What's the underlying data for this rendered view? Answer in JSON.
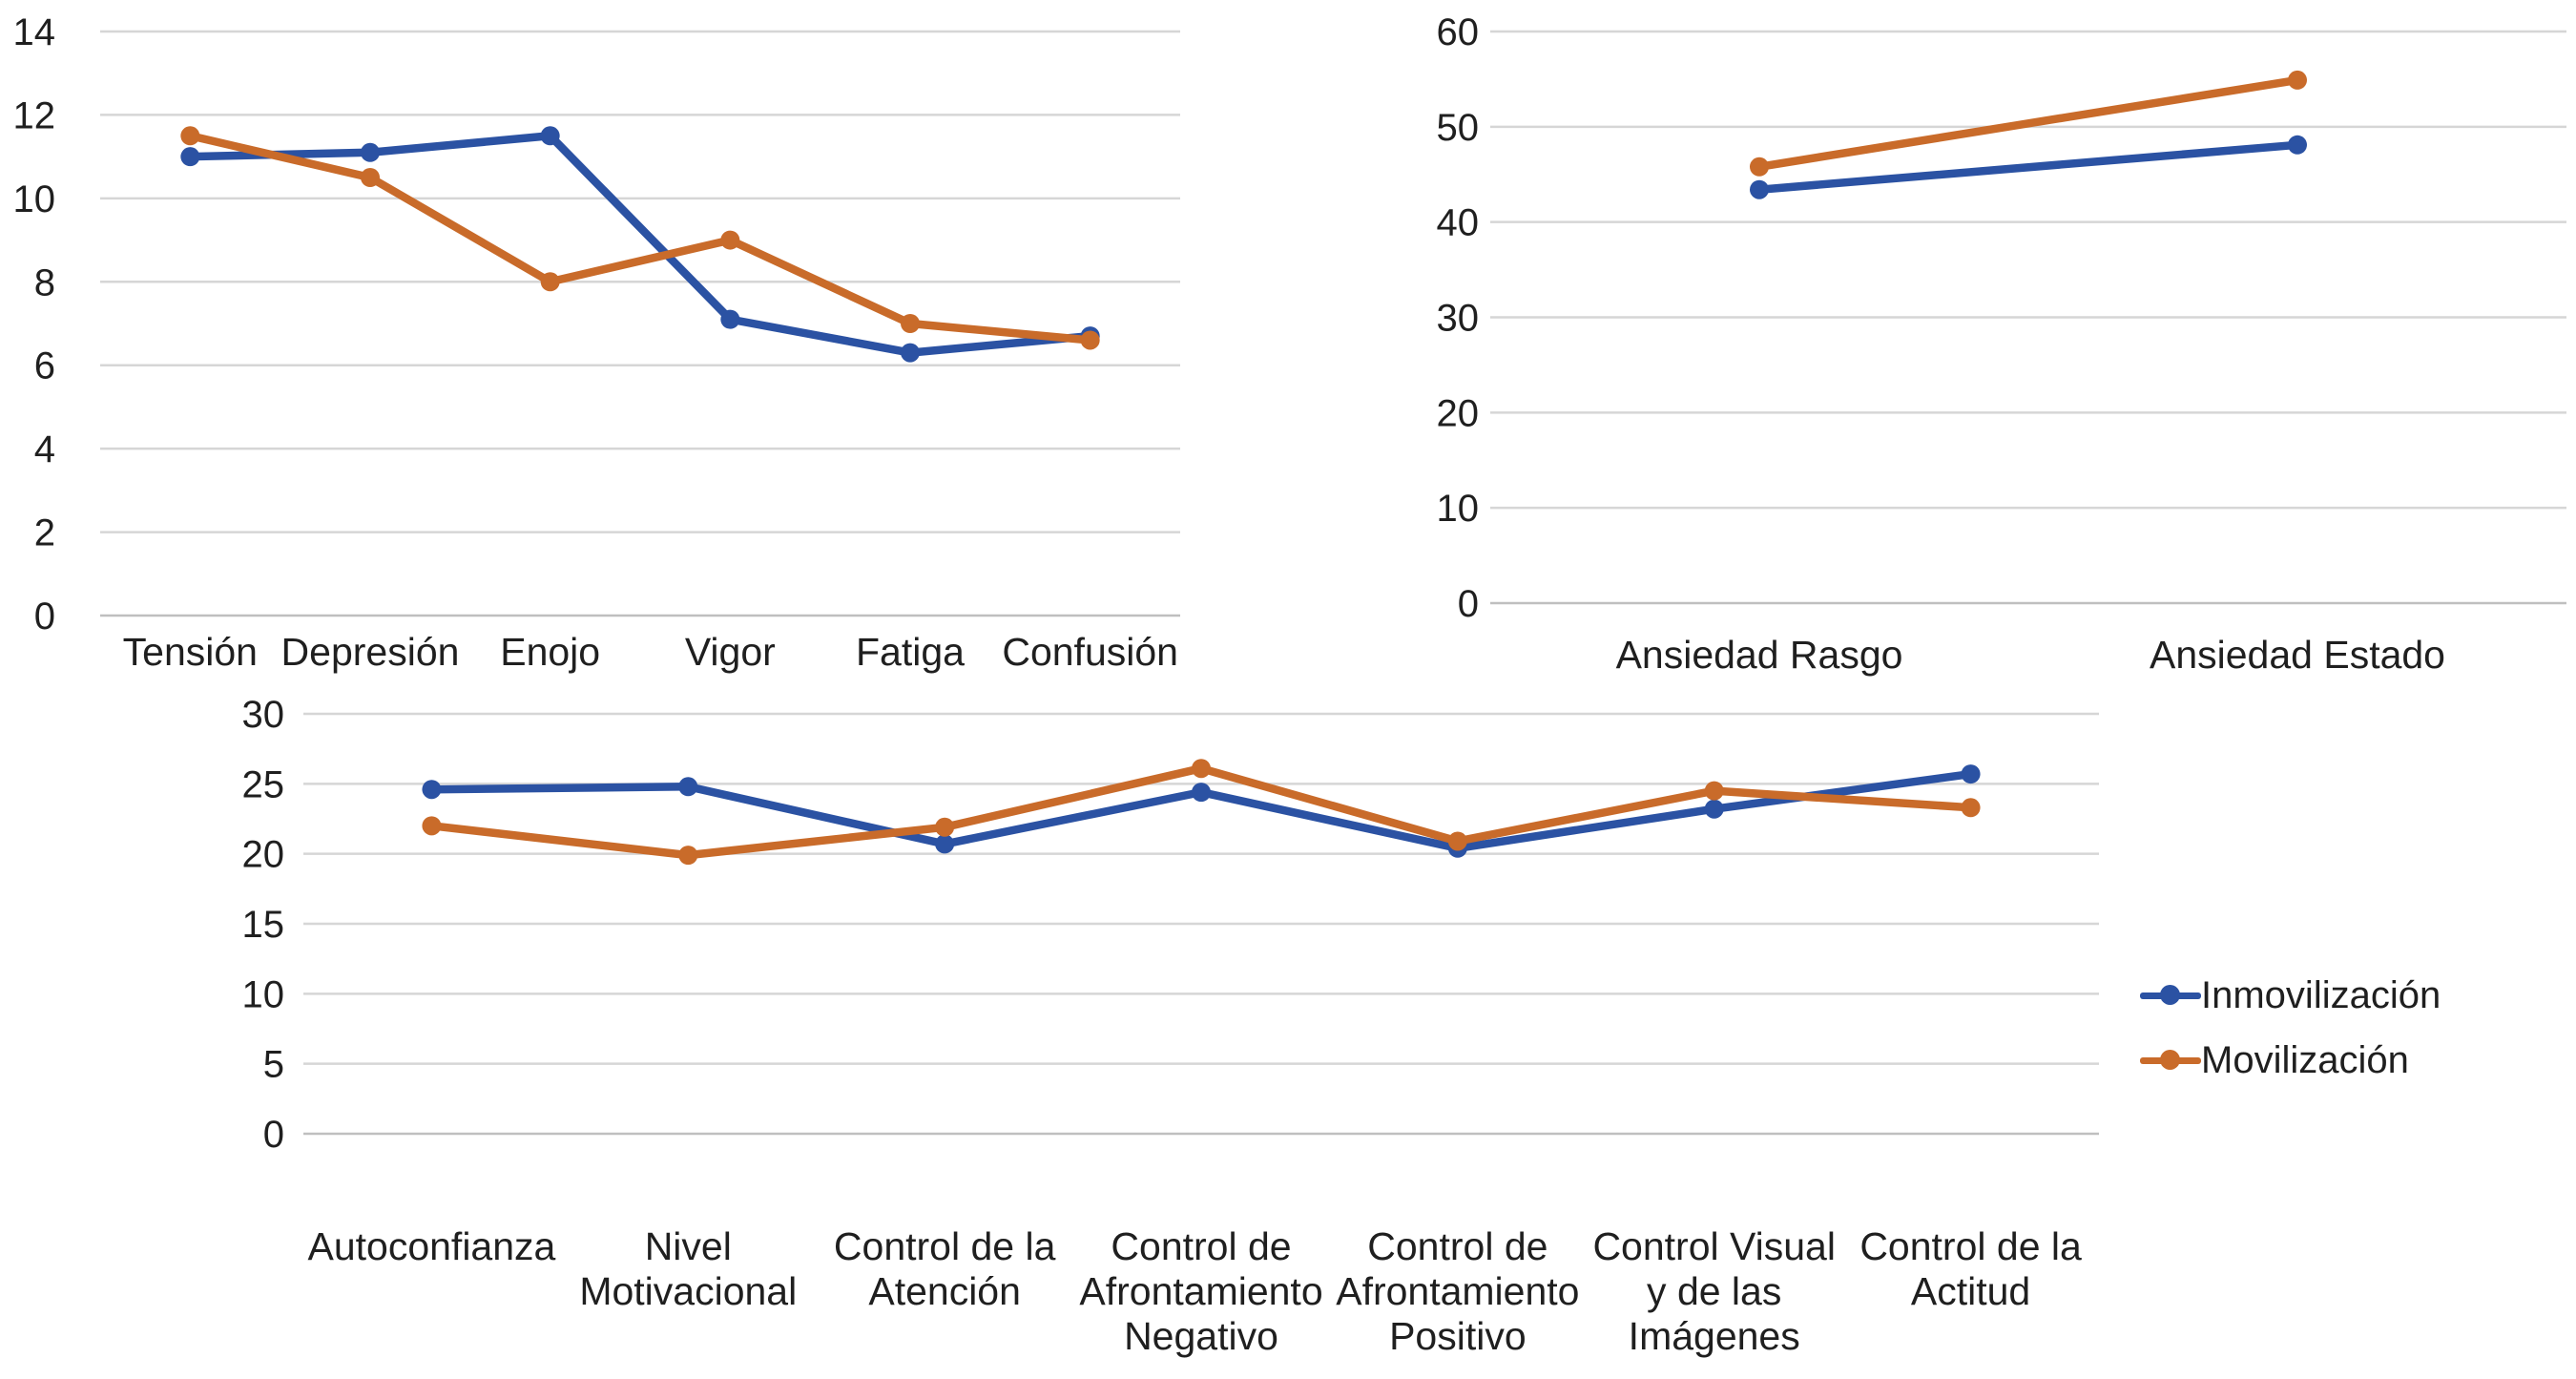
{
  "figure_background": "#ffffff",
  "gridline_color": "#d6d6d6",
  "axis_line_color": "#bfbfbf",
  "text_color": "#1f1f1f",
  "legend": {
    "entries": [
      {
        "label": "Inmovilización",
        "color": "#2B52A3"
      },
      {
        "label": "Movilización",
        "color": "#C96B2A"
      }
    ]
  },
  "chart_data": [
    {
      "id": "poms",
      "type": "line",
      "title": "",
      "xlabel": "",
      "ylabel": "",
      "ylim": [
        0,
        14
      ],
      "y_ticks": [
        14,
        12,
        10,
        8,
        6,
        4,
        2,
        0
      ],
      "grid": true,
      "legend_position": "none",
      "categories": [
        "Tensión",
        "Depresión",
        "Enojo",
        "Vigor",
        "Fatiga",
        "Confusión"
      ],
      "series": [
        {
          "name": "Inmovilización",
          "color": "#2B52A3",
          "values": [
            11.0,
            11.1,
            11.5,
            7.1,
            6.3,
            6.7
          ]
        },
        {
          "name": "Movilización",
          "color": "#C96B2A",
          "values": [
            11.5,
            10.5,
            8.0,
            9.0,
            7.0,
            6.6
          ]
        }
      ]
    },
    {
      "id": "stai",
      "type": "line",
      "title": "",
      "xlabel": "",
      "ylabel": "",
      "ylim": [
        0,
        60
      ],
      "y_ticks": [
        60,
        50,
        40,
        30,
        20,
        10,
        0
      ],
      "grid": true,
      "legend_position": "none",
      "categories": [
        "Ansiedad Rasgo",
        "Ansiedad Estado"
      ],
      "series": [
        {
          "name": "Inmovilización",
          "color": "#2B52A3",
          "values": [
            43.4,
            48.1
          ]
        },
        {
          "name": "Movilización",
          "color": "#C96B2A",
          "values": [
            45.8,
            54.9
          ]
        }
      ]
    },
    {
      "id": "csai",
      "type": "line",
      "title": "",
      "xlabel": "",
      "ylabel": "",
      "ylim": [
        0,
        30
      ],
      "y_ticks": [
        30,
        25,
        20,
        15,
        10,
        5,
        0
      ],
      "grid": true,
      "legend_position": "right",
      "categories": [
        [
          "Autoconfianza"
        ],
        [
          "Nivel",
          "Motivacional"
        ],
        [
          "Control de la",
          "Atención"
        ],
        [
          "Control de",
          "Afrontamiento",
          "Negativo"
        ],
        [
          "Control de",
          "Afrontamiento",
          "Positivo"
        ],
        [
          "Control Visual",
          "y de las",
          "Imágenes"
        ],
        [
          "Control de la",
          "Actitud"
        ]
      ],
      "series": [
        {
          "name": "Inmovilización",
          "color": "#2B52A3",
          "values": [
            24.6,
            24.8,
            20.7,
            24.4,
            20.4,
            23.2,
            25.7
          ]
        },
        {
          "name": "Movilización",
          "color": "#C96B2A",
          "values": [
            22.0,
            19.9,
            21.9,
            26.1,
            20.9,
            24.5,
            23.3
          ]
        }
      ]
    }
  ]
}
